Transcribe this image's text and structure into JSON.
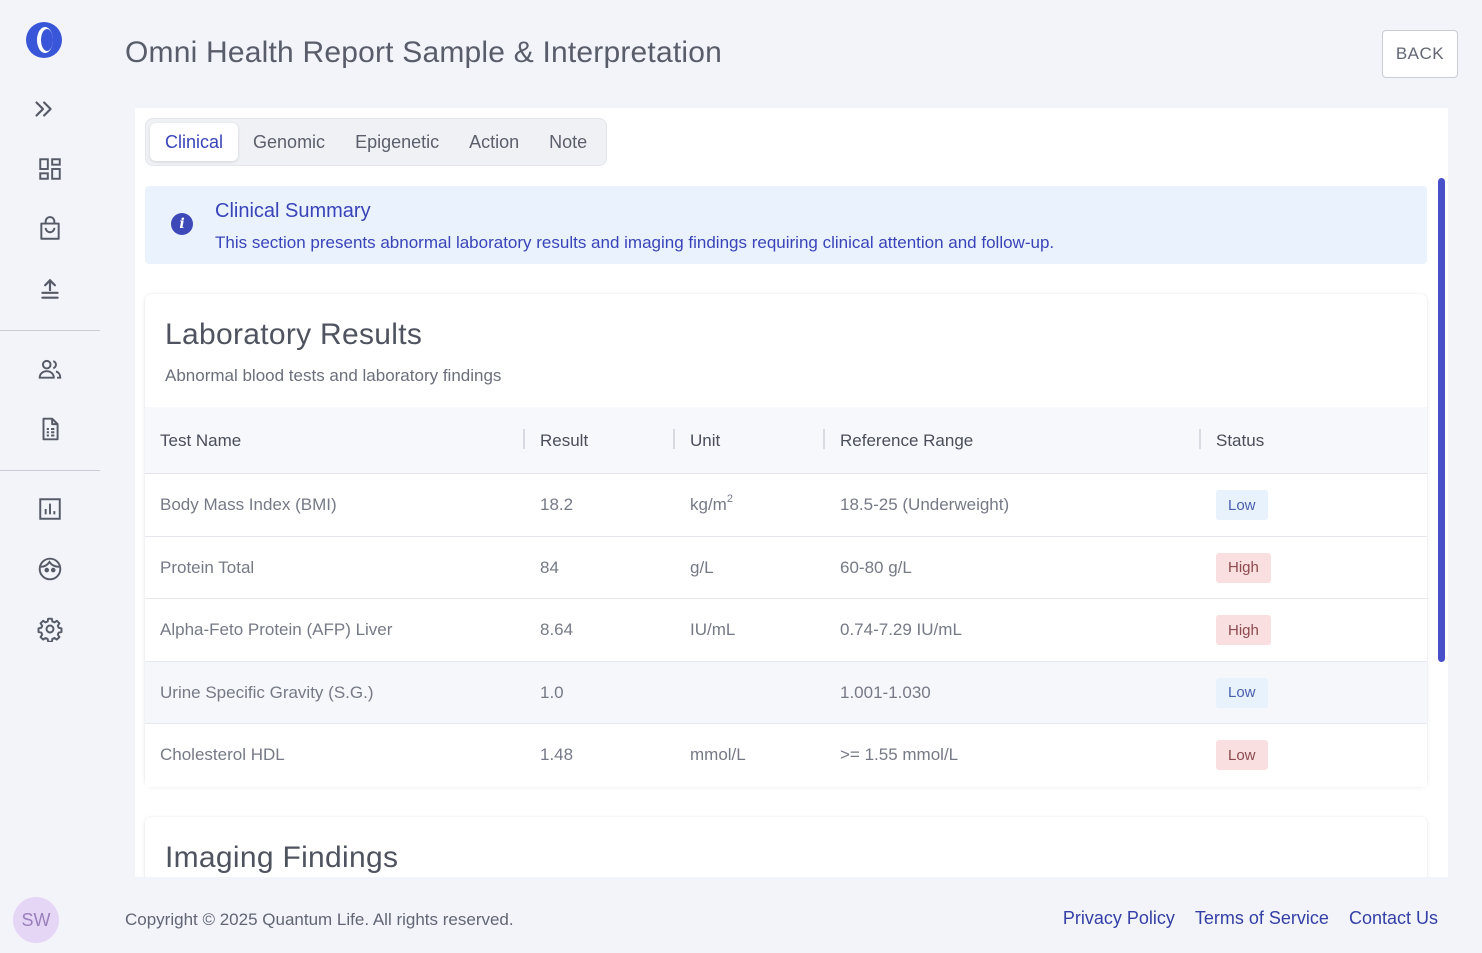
{
  "sidebar": {
    "avatar_initials": "SW",
    "items": [
      {
        "icon": "chevron-double-right-icon"
      },
      {
        "icon": "dashboard-icon"
      },
      {
        "icon": "shopping-bag-icon"
      },
      {
        "icon": "upload-icon"
      },
      {
        "icon": "users-icon"
      },
      {
        "icon": "report-document-icon"
      },
      {
        "icon": "bar-chart-icon"
      },
      {
        "icon": "face-icon"
      },
      {
        "icon": "gear-icon"
      }
    ]
  },
  "header": {
    "title": "Omni Health Report Sample & Interpretation",
    "back_label": "BACK"
  },
  "tabs": [
    {
      "label": "Clinical",
      "active": true
    },
    {
      "label": "Genomic",
      "active": false
    },
    {
      "label": "Epigenetic",
      "active": false
    },
    {
      "label": "Action",
      "active": false
    },
    {
      "label": "Note",
      "active": false
    }
  ],
  "summary": {
    "title": "Clinical Summary",
    "text": "This section presents abnormal laboratory results and imaging findings requiring clinical attention and follow-up."
  },
  "lab": {
    "title": "Laboratory Results",
    "subtitle": "Abnormal blood tests and laboratory findings",
    "columns": [
      "Test Name",
      "Result",
      "Unit",
      "Reference Range",
      "Status"
    ],
    "rows": [
      {
        "name": "Body Mass Index (BMI)",
        "result": "18.2",
        "unit": "kg/m",
        "unit_sup": "2",
        "range": "18.5-25 (Underweight)",
        "status": "Low"
      },
      {
        "name": "Protein Total",
        "result": "84",
        "unit": "g/L",
        "unit_sup": "",
        "range": "60-80 g/L",
        "status": "High"
      },
      {
        "name": "Alpha-Feto Protein (AFP) Liver",
        "result": "8.64",
        "unit": "IU/mL",
        "unit_sup": "",
        "range": "0.74-7.29 IU/mL",
        "status": "High"
      },
      {
        "name": "Urine Specific Gravity (S.G.)",
        "result": "1.0",
        "unit": "",
        "unit_sup": "",
        "range": "1.001-1.030",
        "status": "Low"
      },
      {
        "name": "Cholesterol HDL",
        "result": "1.48",
        "unit": "mmol/L",
        "unit_sup": "",
        "range": ">= 1.55 mmol/L",
        "status": "Low"
      }
    ]
  },
  "imaging": {
    "title": "Imaging Findings"
  },
  "footer": {
    "copyright": "Copyright © 2025 Quantum Life. All rights reserved.",
    "links": [
      "Privacy Policy",
      "Terms of Service",
      "Contact Us"
    ]
  },
  "colors": {
    "accent": "#3944b8",
    "low_badge_bg": "#e8f2fd",
    "high_badge_bg": "#f9dfe0"
  }
}
